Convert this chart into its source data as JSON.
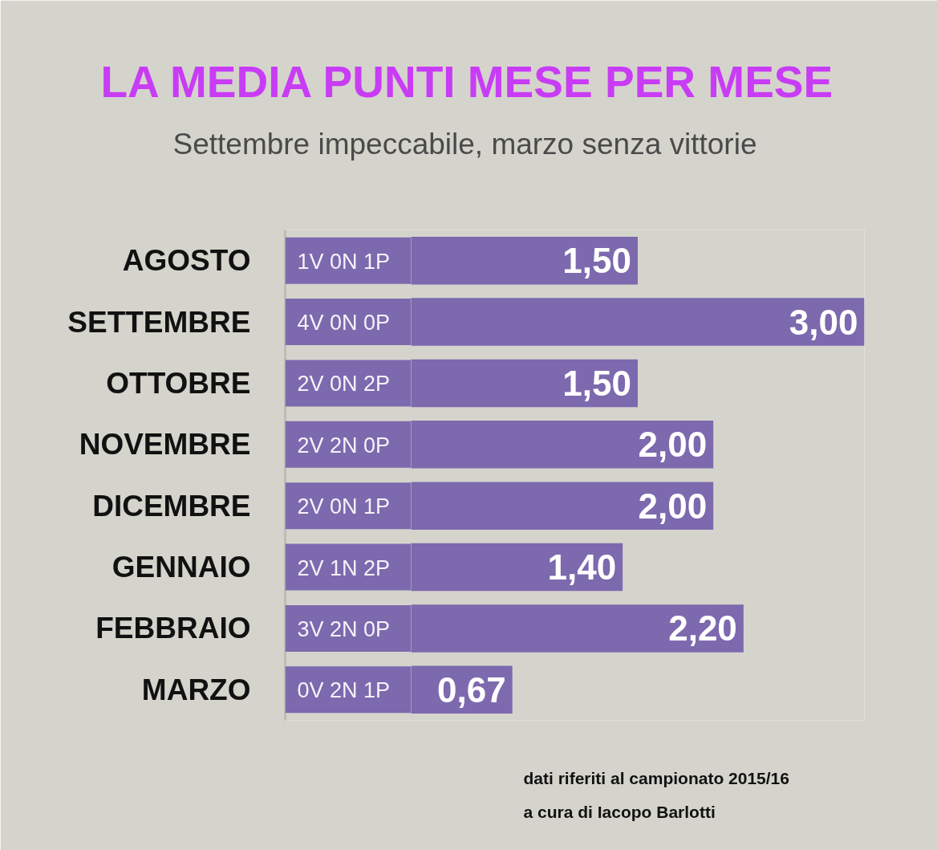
{
  "chart_data": {
    "type": "bar",
    "orientation": "horizontal",
    "title": "LA MEDIA PUNTI MESE PER MESE",
    "subtitle": "Settembre impeccabile, marzo senza vittorie",
    "categories": [
      "AGOSTO",
      "SETTEMBRE",
      "OTTOBRE",
      "NOVEMBRE",
      "DICEMBRE",
      "GENNAIO",
      "FEBBRAIO",
      "MARZO"
    ],
    "values": [
      1.5,
      3.0,
      1.5,
      2.0,
      2.0,
      1.4,
      2.2,
      0.67
    ],
    "value_labels": [
      "1,50",
      "3,00",
      "1,50",
      "2,00",
      "2,00",
      "1,40",
      "2,20",
      "0,67"
    ],
    "color": "#7d69ae",
    "xlim": [
      0,
      3
    ],
    "tick_labels": "y",
    "grid": false,
    "annotations": [
      "1V 0N 1P",
      "4V 0N 0P",
      "2V 0N 2P",
      "2V 2N 0P",
      "2V 0N 1P",
      "2V 1N 2P",
      "3V 2N 0P",
      "0V 2N 1P",
      "dati riferiti al campionato 2015/16",
      "a cura di Iacopo Barlotti"
    ]
  }
}
